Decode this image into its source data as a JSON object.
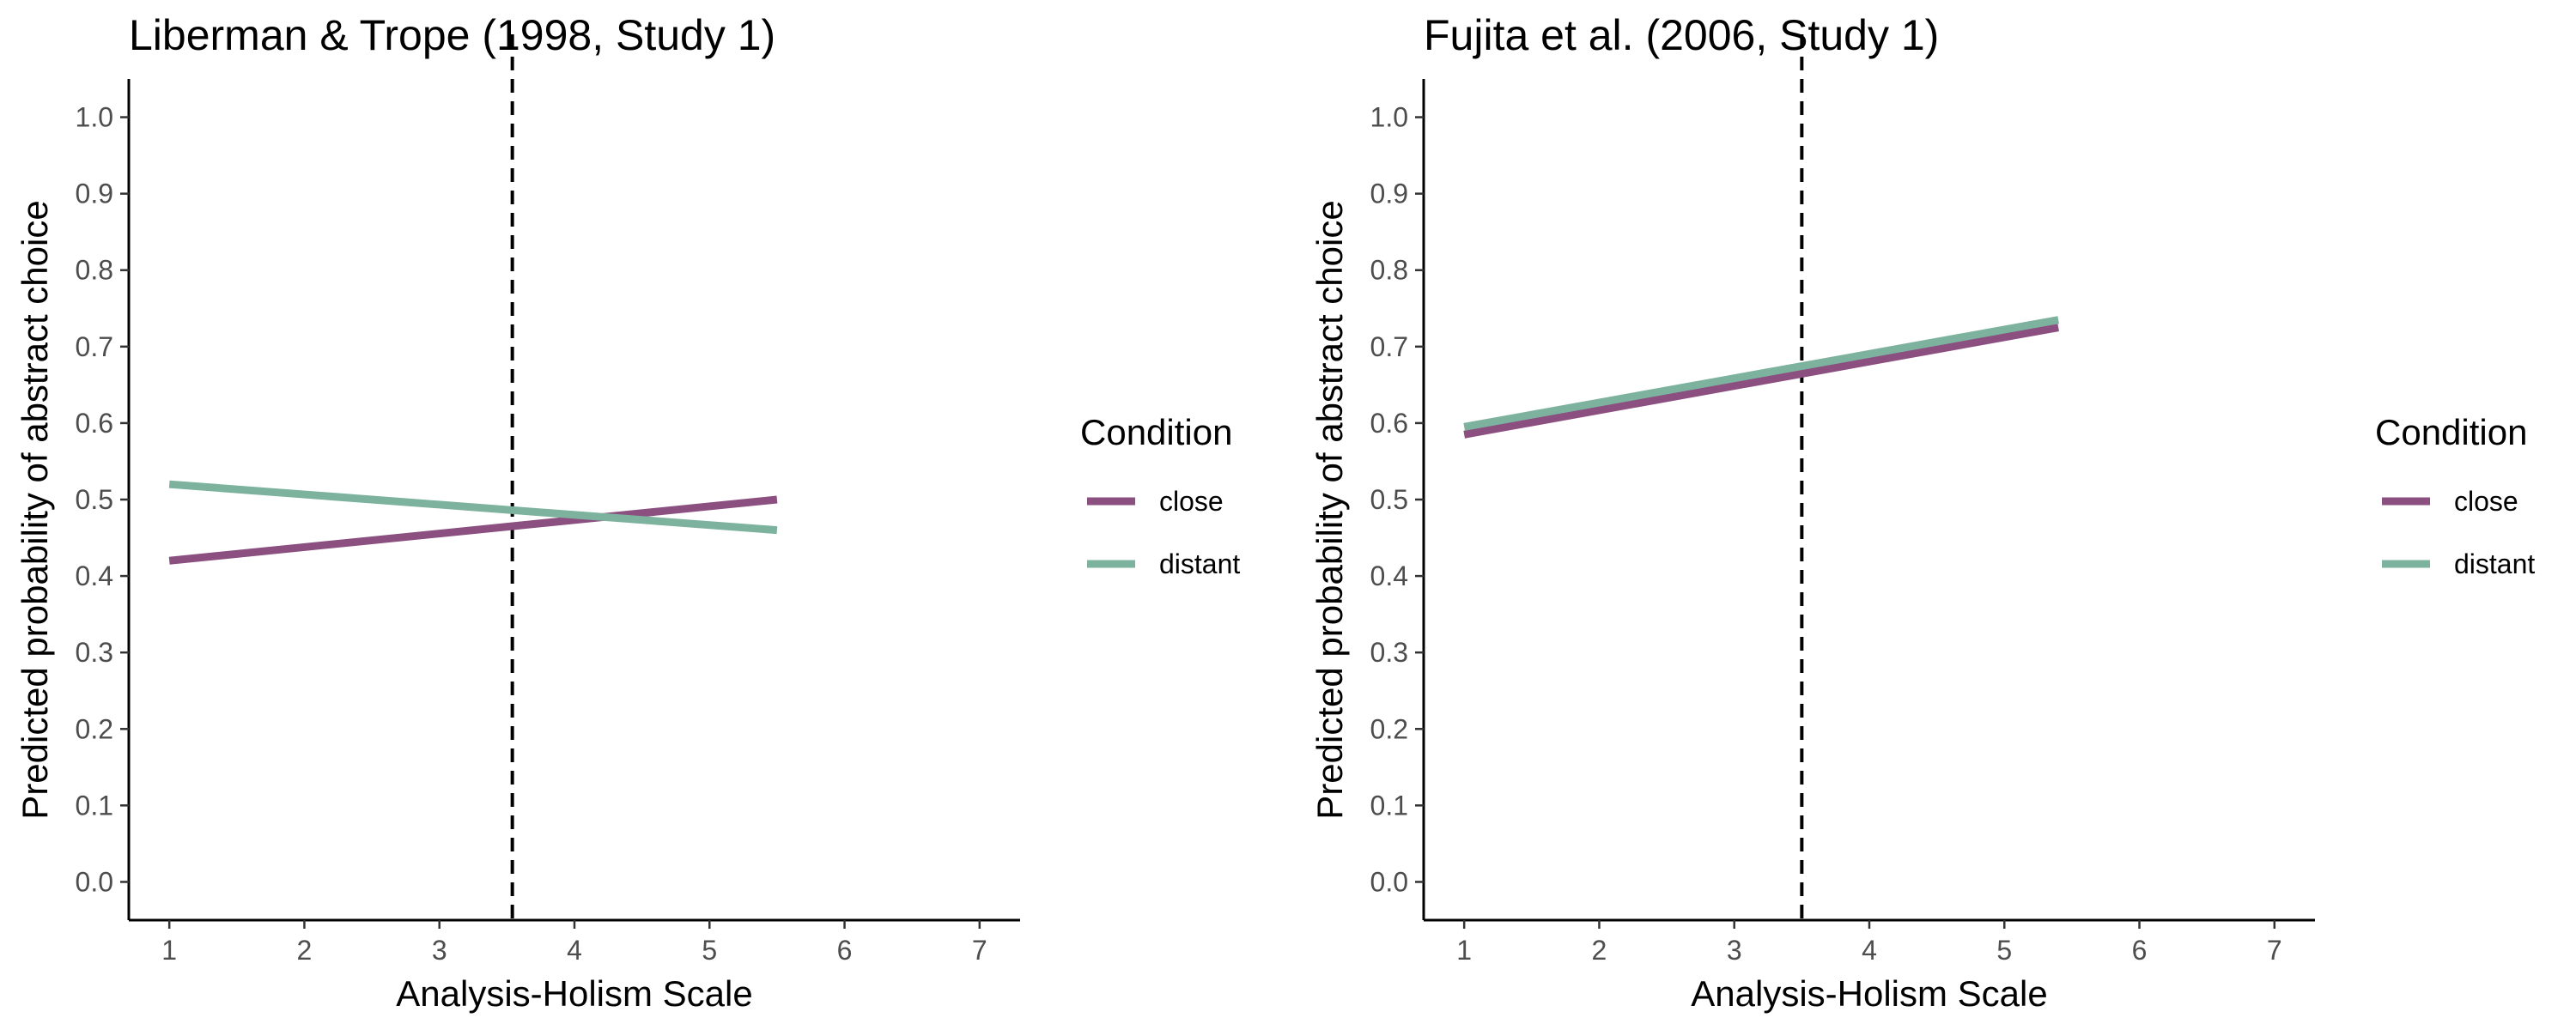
{
  "chart_data": [
    {
      "type": "line",
      "title": "Liberman & Trope (1998, Study 1)",
      "xlabel": "Analysis-Holism Scale",
      "ylabel": "Predicted probability of abstract choice",
      "xlim": [
        0.7,
        7.3
      ],
      "ylim": [
        -0.05,
        1.05
      ],
      "xticks": [
        1,
        2,
        3,
        4,
        5,
        6,
        7
      ],
      "yticks": [
        0.0,
        0.1,
        0.2,
        0.3,
        0.4,
        0.5,
        0.6,
        0.7,
        0.8,
        0.9,
        1.0
      ],
      "ytick_labels": [
        "0.0",
        "0.1",
        "0.2",
        "0.3",
        "0.4",
        "0.5",
        "0.6",
        "0.7",
        "0.8",
        "0.9",
        "1.0"
      ],
      "vline": 3.54,
      "series": [
        {
          "name": "close",
          "color": "#8B4F80",
          "x": [
            1,
            5.5
          ],
          "y": [
            0.42,
            0.5
          ]
        },
        {
          "name": "distant",
          "color": "#7DB39E",
          "x": [
            1,
            5.5
          ],
          "y": [
            0.52,
            0.46
          ]
        }
      ],
      "legend": {
        "title": "Condition",
        "position": "right",
        "entries": [
          "close",
          "distant"
        ]
      },
      "grid": false
    },
    {
      "type": "line",
      "title": "Fujita et al. (2006, Study 1)",
      "xlabel": "Analysis-Holism Scale",
      "ylabel": "Predicted probability of abstract choice",
      "xlim": [
        0.7,
        7.3
      ],
      "ylim": [
        -0.05,
        1.05
      ],
      "xticks": [
        1,
        2,
        3,
        4,
        5,
        6,
        7
      ],
      "yticks": [
        0.0,
        0.1,
        0.2,
        0.3,
        0.4,
        0.5,
        0.6,
        0.7,
        0.8,
        0.9,
        1.0
      ],
      "ytick_labels": [
        "0.0",
        "0.1",
        "0.2",
        "0.3",
        "0.4",
        "0.5",
        "0.6",
        "0.7",
        "0.8",
        "0.9",
        "1.0"
      ],
      "vline": 3.5,
      "series": [
        {
          "name": "close",
          "color": "#8B4F80",
          "x": [
            1,
            5.4
          ],
          "y": [
            0.585,
            0.725
          ]
        },
        {
          "name": "distant",
          "color": "#7DB39E",
          "x": [
            1,
            5.4
          ],
          "y": [
            0.595,
            0.735
          ]
        }
      ],
      "legend": {
        "title": "Condition",
        "position": "right",
        "entries": [
          "close",
          "distant"
        ]
      },
      "grid": false
    }
  ]
}
